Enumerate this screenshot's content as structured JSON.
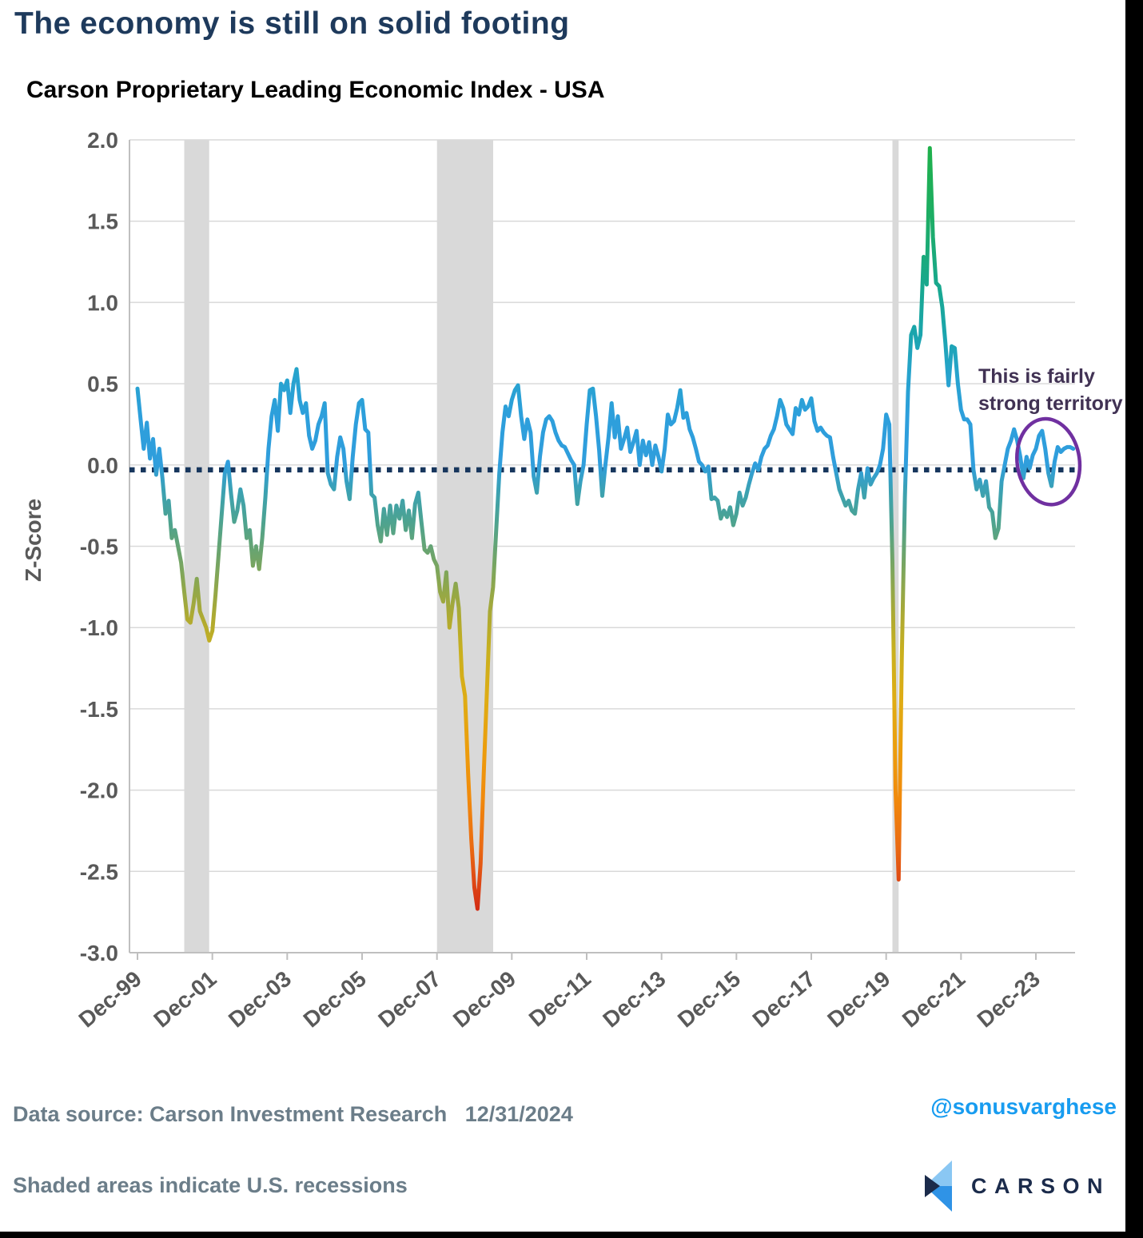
{
  "header": {
    "title": "The economy is still on solid footing",
    "subtitle": "Carson Proprietary Leading Economic Index - USA"
  },
  "footer": {
    "source_line": "Data source: Carson Investment Research   12/31/2024",
    "recession_note": "Shaded areas indicate U.S. recessions",
    "handle": "@sonusvarghese",
    "logo_text": "CARSON"
  },
  "colors": {
    "title-color": "#1E3A5C",
    "subtitle-color": "#000000",
    "tick-color": "#595959",
    "grid-color": "#D9D9D9",
    "axis-color": "#BFBFBF",
    "band-color": "#D9D9D9",
    "zero-color": "#17365D",
    "footer-color": "#6B7D89",
    "handle-color": "#189CF0",
    "annotation-color": "#413254",
    "ellipse-color": "#7030A0",
    "logo-navy": "#1B2B4B",
    "logo-light": "#8AC7F3",
    "logo-mid": "#2F93E6"
  },
  "chart_data": {
    "type": "line",
    "title": "Carson Proprietary Leading Economic Index - USA",
    "xlabel": "",
    "ylabel": "Z-Score",
    "ylim": [
      -3.0,
      2.0
    ],
    "grid": "horizontal",
    "legend": "none",
    "series_start": "Dec-1999",
    "frequency": "monthly",
    "y_ticks": [
      2.0,
      1.5,
      1.0,
      0.5,
      0.0,
      -0.5,
      -1.0,
      -1.5,
      -2.0,
      -2.5,
      -3.0
    ],
    "x_ticks": [
      {
        "m": 0,
        "label": "Dec-99"
      },
      {
        "m": 24,
        "label": "Dec-01"
      },
      {
        "m": 48,
        "label": "Dec-03"
      },
      {
        "m": 72,
        "label": "Dec-05"
      },
      {
        "m": 96,
        "label": "Dec-07"
      },
      {
        "m": 120,
        "label": "Dec-09"
      },
      {
        "m": 144,
        "label": "Dec-11"
      },
      {
        "m": 168,
        "label": "Dec-13"
      },
      {
        "m": 192,
        "label": "Dec-15"
      },
      {
        "m": 216,
        "label": "Dec-17"
      },
      {
        "m": 240,
        "label": "Dec-19"
      },
      {
        "m": 264,
        "label": "Dec-21"
      },
      {
        "m": 288,
        "label": "Dec-23"
      }
    ],
    "zero_line_value": -0.03,
    "recessions_month_ranges": [
      [
        15,
        23
      ],
      [
        96,
        114
      ],
      [
        242,
        244
      ]
    ],
    "values": [
      0.47,
      0.28,
      0.1,
      0.26,
      0.04,
      0.16,
      -0.06,
      0.1,
      -0.08,
      -0.3,
      -0.22,
      -0.45,
      -0.4,
      -0.5,
      -0.6,
      -0.78,
      -0.95,
      -0.97,
      -0.85,
      -0.7,
      -0.9,
      -0.95,
      -1.0,
      -1.08,
      -1.02,
      -0.8,
      -0.55,
      -0.3,
      -0.05,
      0.02,
      -0.18,
      -0.35,
      -0.28,
      -0.15,
      -0.25,
      -0.45,
      -0.4,
      -0.62,
      -0.5,
      -0.64,
      -0.45,
      -0.2,
      0.1,
      0.3,
      0.4,
      0.21,
      0.5,
      0.46,
      0.52,
      0.32,
      0.5,
      0.59,
      0.4,
      0.32,
      0.38,
      0.18,
      0.1,
      0.15,
      0.25,
      0.3,
      0.38,
      -0.05,
      -0.12,
      -0.15,
      0.05,
      0.17,
      0.1,
      -0.1,
      -0.21,
      0.05,
      0.25,
      0.38,
      0.4,
      0.22,
      0.2,
      -0.18,
      -0.2,
      -0.37,
      -0.47,
      -0.27,
      -0.43,
      -0.25,
      -0.42,
      -0.25,
      -0.33,
      -0.22,
      -0.4,
      -0.28,
      -0.45,
      -0.24,
      -0.17,
      -0.35,
      -0.52,
      -0.54,
      -0.5,
      -0.58,
      -0.62,
      -0.78,
      -0.84,
      -0.66,
      -1.0,
      -0.85,
      -0.73,
      -0.88,
      -1.3,
      -1.42,
      -1.9,
      -2.3,
      -2.6,
      -2.73,
      -2.45,
      -1.9,
      -1.4,
      -0.9,
      -0.75,
      -0.4,
      -0.05,
      0.2,
      0.36,
      0.3,
      0.4,
      0.46,
      0.49,
      0.3,
      0.16,
      0.28,
      0.2,
      -0.07,
      -0.17,
      0.05,
      0.2,
      0.28,
      0.3,
      0.27,
      0.2,
      0.15,
      0.12,
      0.11,
      0.07,
      0.03,
      0.0,
      -0.24,
      -0.1,
      0.0,
      0.25,
      0.46,
      0.47,
      0.3,
      0.09,
      -0.19,
      0.0,
      0.17,
      0.38,
      0.17,
      0.3,
      0.1,
      0.16,
      0.23,
      0.08,
      0.14,
      0.21,
      0.0,
      0.15,
      0.06,
      0.14,
      0.0,
      0.12,
      0.05,
      -0.04,
      0.1,
      0.31,
      0.25,
      0.27,
      0.35,
      0.46,
      0.29,
      0.32,
      0.22,
      0.17,
      0.1,
      0.02,
      0.0,
      -0.04,
      -0.01,
      -0.21,
      -0.2,
      -0.22,
      -0.33,
      -0.28,
      -0.32,
      -0.26,
      -0.37,
      -0.3,
      -0.17,
      -0.25,
      -0.2,
      -0.12,
      -0.05,
      0.01,
      -0.03,
      0.05,
      0.1,
      0.12,
      0.18,
      0.22,
      0.3,
      0.4,
      0.35,
      0.25,
      0.22,
      0.19,
      0.35,
      0.31,
      0.4,
      0.34,
      0.36,
      0.41,
      0.27,
      0.21,
      0.23,
      0.2,
      0.18,
      0.17,
      0.05,
      -0.05,
      -0.15,
      -0.2,
      -0.25,
      -0.22,
      -0.28,
      -0.3,
      -0.15,
      -0.05,
      -0.2,
      -0.02,
      -0.12,
      -0.08,
      -0.05,
      0.0,
      0.1,
      0.31,
      0.25,
      -0.6,
      -2.0,
      -2.55,
      -1.2,
      -0.2,
      0.45,
      0.8,
      0.85,
      0.72,
      0.8,
      1.28,
      1.11,
      1.95,
      1.4,
      1.12,
      1.1,
      0.97,
      0.75,
      0.49,
      0.73,
      0.72,
      0.5,
      0.34,
      0.28,
      0.28,
      0.25,
      -0.03,
      -0.15,
      -0.09,
      -0.19,
      -0.1,
      -0.26,
      -0.29,
      -0.45,
      -0.39,
      -0.1,
      0.0,
      0.1,
      0.15,
      0.22,
      0.15,
      0.05,
      -0.08,
      0.05,
      -0.02,
      0.06,
      0.1,
      0.18,
      0.21,
      0.1,
      -0.05,
      -0.13,
      0.02,
      0.11,
      0.08,
      0.1,
      0.11,
      0.11,
      0.1
    ],
    "colormap_stops": [
      {
        "v": 2.0,
        "c": "#1FB148"
      },
      {
        "v": 1.5,
        "c": "#1DAD66"
      },
      {
        "v": 1.1,
        "c": "#18A88E"
      },
      {
        "v": 0.8,
        "c": "#1BA5AE"
      },
      {
        "v": 0.55,
        "c": "#27A3CE"
      },
      {
        "v": 0.3,
        "c": "#2D9FDC"
      },
      {
        "v": 0.0,
        "c": "#309EDC"
      },
      {
        "v": -0.15,
        "c": "#3AA1B4"
      },
      {
        "v": -0.35,
        "c": "#4DA390"
      },
      {
        "v": -0.55,
        "c": "#6CA46C"
      },
      {
        "v": -0.75,
        "c": "#8EA74C"
      },
      {
        "v": -0.95,
        "c": "#B0AA30"
      },
      {
        "v": -1.15,
        "c": "#C9B01E"
      },
      {
        "v": -1.45,
        "c": "#DFAC14"
      },
      {
        "v": -1.75,
        "c": "#EC9D0C"
      },
      {
        "v": -2.05,
        "c": "#F18A0C"
      },
      {
        "v": -2.35,
        "c": "#EA6A12"
      },
      {
        "v": -2.6,
        "c": "#DC4214"
      },
      {
        "v": -2.8,
        "c": "#CD2113"
      },
      {
        "v": -3.0,
        "c": "#C81E12"
      }
    ],
    "annotation": {
      "line1": "This is fairly",
      "line2": "strong territory"
    },
    "highlight_ellipse": {
      "center_month": 292,
      "center_value": 0.02,
      "rx_months": 10,
      "ry_values": 0.265,
      "rotation_deg": -8
    }
  }
}
